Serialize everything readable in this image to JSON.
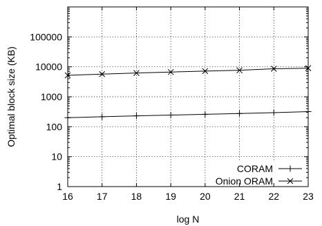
{
  "chart_data": {
    "type": "line",
    "title": "",
    "xlabel": "log N",
    "ylabel": "Optimal block size (KB)",
    "x": [
      16,
      17,
      18,
      19,
      20,
      21,
      22,
      23
    ],
    "xlim": [
      16,
      23
    ],
    "ylim": [
      1,
      1000000
    ],
    "yscale": "log",
    "x_ticks": [
      "16",
      "17",
      "18",
      "19",
      "20",
      "21",
      "22",
      "23"
    ],
    "y_ticks": [
      {
        "value": 1,
        "label": "1"
      },
      {
        "value": 10,
        "label": "10"
      },
      {
        "value": 100,
        "label": "100"
      },
      {
        "value": 1000,
        "label": "1000"
      },
      {
        "value": 10000,
        "label": "10000"
      },
      {
        "value": 100000,
        "label": "100000"
      }
    ],
    "grid": true,
    "legend_position": "bottom-right",
    "series": [
      {
        "name": "CORAM",
        "marker": "plus",
        "values": [
          200,
          215,
          230,
          245,
          260,
          275,
          295,
          320
        ]
      },
      {
        "name": "Onion ORAM",
        "marker": "x",
        "values": [
          5200,
          5700,
          6200,
          6700,
          7200,
          7700,
          8600,
          9000
        ]
      }
    ]
  }
}
